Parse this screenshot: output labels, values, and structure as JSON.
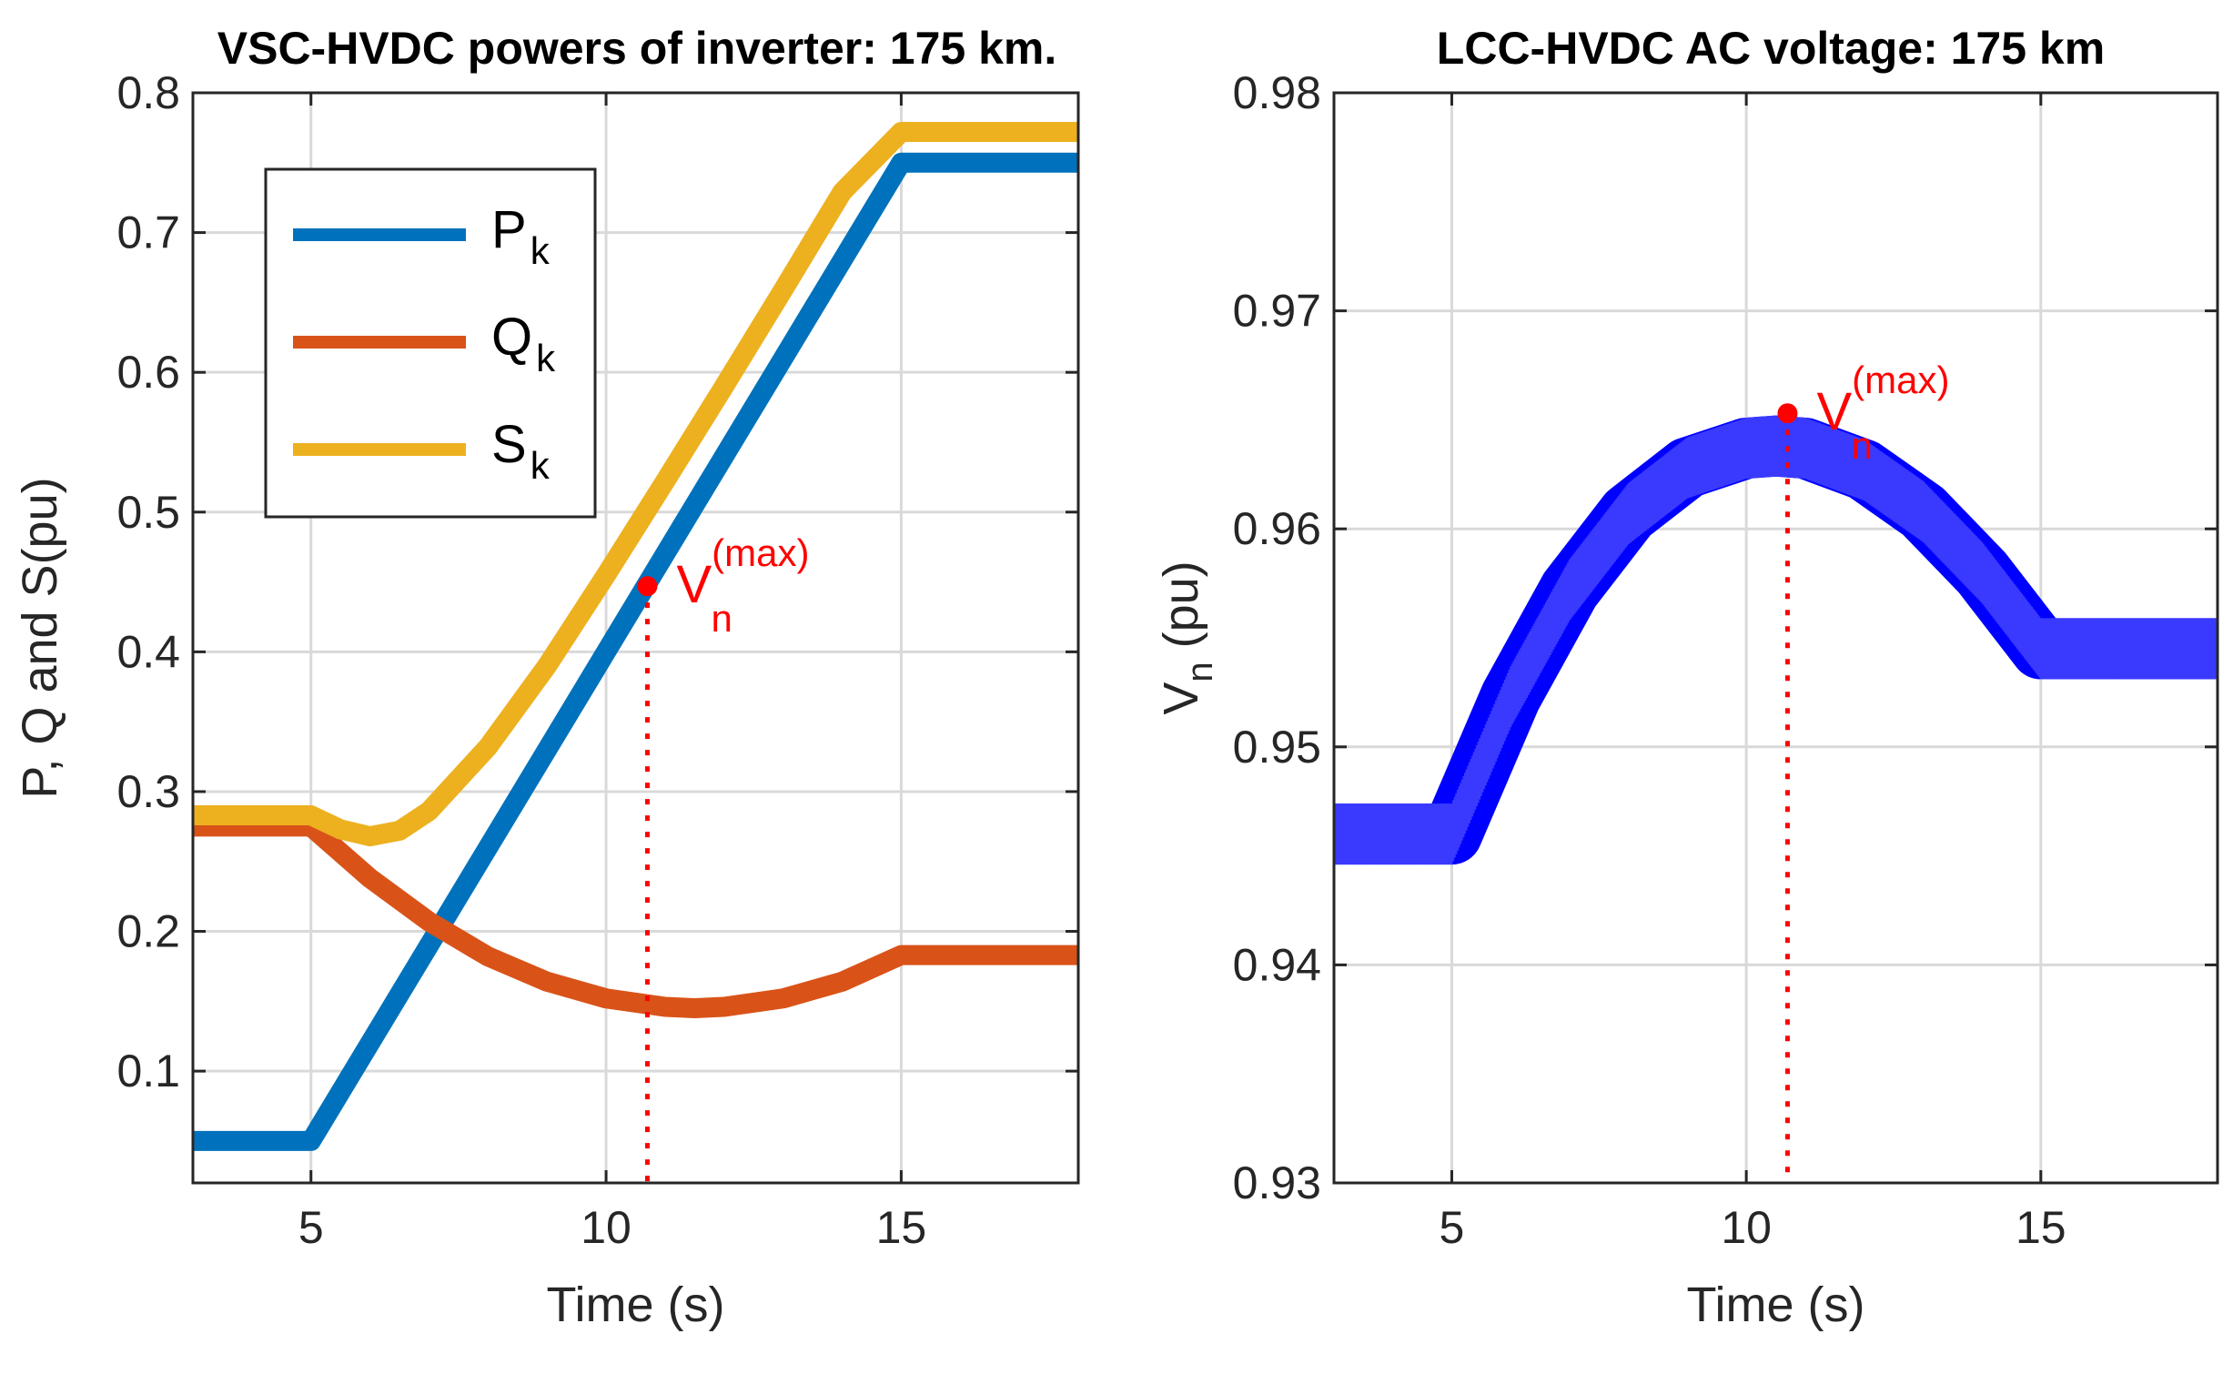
{
  "chart_data": [
    {
      "type": "line",
      "title": "VSC-HVDC powers of inverter: 175 km.",
      "xlabel": "Time (s)",
      "ylabel": "P, Q and S(pu)",
      "xlim": [
        3,
        18
      ],
      "ylim": [
        0.02,
        0.8
      ],
      "xticks": [
        5,
        10,
        15
      ],
      "xtick_labels": [
        "5",
        "10",
        "15"
      ],
      "yticks": [
        0.1,
        0.2,
        0.3,
        0.4,
        0.5,
        0.6,
        0.7,
        0.8
      ],
      "ytick_labels": [
        "0.1",
        "0.2",
        "0.3",
        "0.4",
        "0.5",
        "0.6",
        "0.7",
        "0.8"
      ],
      "grid": true,
      "legend_position": "top-left",
      "series": [
        {
          "name": "P",
          "subscript": "k",
          "color": "#0072BD",
          "x": [
            3,
            5,
            15,
            18
          ],
          "y": [
            0.05,
            0.05,
            0.75,
            0.75
          ]
        },
        {
          "name": "Q",
          "subscript": "k",
          "color": "#D95319",
          "x": [
            3,
            5,
            6,
            7,
            8,
            9,
            10,
            11,
            11.5,
            12,
            13,
            14,
            15,
            18
          ],
          "y": [
            0.275,
            0.275,
            0.238,
            0.207,
            0.182,
            0.164,
            0.152,
            0.146,
            0.145,
            0.146,
            0.152,
            0.164,
            0.183,
            0.183
          ]
        },
        {
          "name": "S",
          "subscript": "k",
          "color": "#EDB120",
          "x": [
            3,
            5,
            5.5,
            6,
            6.5,
            7,
            8,
            9,
            10,
            11,
            12,
            13,
            14,
            15,
            18
          ],
          "y": [
            0.283,
            0.283,
            0.273,
            0.268,
            0.272,
            0.286,
            0.332,
            0.39,
            0.455,
            0.522,
            0.59,
            0.659,
            0.729,
            0.772,
            0.772
          ]
        }
      ],
      "annotations": [
        {
          "label_base": "V",
          "label_sub": "n",
          "label_sup": "(max)",
          "color": "#FF0000",
          "x": 10.7,
          "y": 0.447
        }
      ]
    },
    {
      "type": "line",
      "title": "LCC-HVDC AC voltage: 175 km",
      "xlabel": "Time (s)",
      "ylabel_base": "V",
      "ylabel_sub": "n",
      "ylabel_rest": " (pu)",
      "xlim": [
        3,
        18
      ],
      "ylim": [
        0.93,
        0.98
      ],
      "xticks": [
        5,
        10,
        15
      ],
      "xtick_labels": [
        "5",
        "10",
        "15"
      ],
      "yticks": [
        0.93,
        0.94,
        0.95,
        0.96,
        0.97,
        0.98
      ],
      "ytick_labels": [
        "0.93",
        "0.94",
        "0.95",
        "0.96",
        "0.97",
        "0.98"
      ],
      "grid": true,
      "series": [
        {
          "name": "V_n",
          "color": "#0000FF",
          "band": 0.0028,
          "x": [
            3,
            5,
            6,
            7,
            8,
            9,
            10,
            10.5,
            11,
            12,
            13,
            14,
            15,
            18
          ],
          "y": [
            0.946,
            0.946,
            0.9523,
            0.9572,
            0.9607,
            0.9628,
            0.9637,
            0.9638,
            0.9637,
            0.9627,
            0.9608,
            0.958,
            0.9545,
            0.9545
          ]
        }
      ],
      "annotations": [
        {
          "label_base": "V",
          "label_sub": "n",
          "label_sup": "(max)",
          "color": "#FF0000",
          "x": 10.7,
          "y": 0.9653
        }
      ]
    }
  ]
}
